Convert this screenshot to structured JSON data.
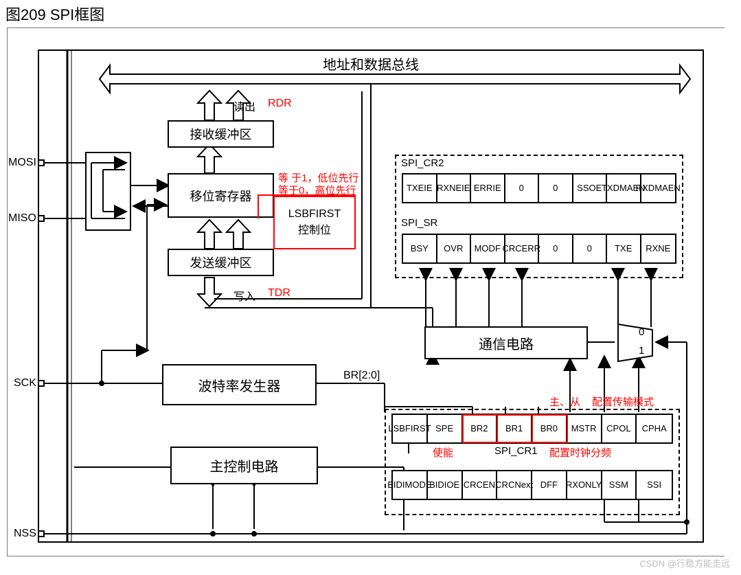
{
  "title": "图209    SPI框图",
  "bus_label": "地址和数据总线",
  "blocks": {
    "rx_buf": "接收缓冲区",
    "shift_reg": "移位寄存器",
    "tx_buf": "发送缓冲区",
    "lsbfirst_box_l1": "LSBFIRST",
    "lsbfirst_box_l2": "控制位",
    "baud": "波特率发生器",
    "master_ctrl": "主控制电路",
    "comm": "通信电路"
  },
  "labels": {
    "read": "读出",
    "write": "写入",
    "br": "BR[2:0]",
    "mux0": "0",
    "mux1": "1"
  },
  "red": {
    "rdr": "RDR",
    "tdr": "TDR",
    "lsb_note1": "等 于1，低位先行",
    "lsb_note2": "等于0，高位先行",
    "enable": "使能",
    "master_slave": "主、从",
    "mode": "配置传输模式",
    "clkdiv": "配置时钟分频",
    "red_color": "#ff0000"
  },
  "pins": {
    "mosi": "MOSI",
    "miso": "MISO",
    "sck": "SCK",
    "nss": "NSS"
  },
  "registers": {
    "cr2": {
      "name": "SPI_CR2",
      "cells": [
        "TXE\nIE",
        "RXNE\nIE",
        "ERR\nIE",
        "0",
        "0",
        "SSOE",
        "TXDM\nAEN",
        "RXDM\nAEN"
      ]
    },
    "sr": {
      "name": "SPI_SR",
      "cells": [
        "BSY",
        "OVR",
        "MOD\nF",
        "CRC\nERR",
        "0",
        "0",
        "TXE",
        "RXNE"
      ]
    },
    "cr1_top": {
      "name": "SPI_CR1",
      "cells": [
        "LSB\nFIRST",
        "SPE",
        "BR2",
        "BR1",
        "BR0",
        "MSTR",
        "CPOL",
        "CPHA"
      ],
      "red_indices": [
        2,
        3,
        4
      ]
    },
    "cr1_bot": {
      "cells": [
        "BIDI\nMODE",
        "BIDI\nOE",
        "CRC\nEN",
        "CRC\nNext",
        "DFF",
        "RX\nONLY",
        "SSM",
        "SSI"
      ]
    }
  },
  "colors": {
    "fg": "#000000",
    "bg": "#ffffff",
    "red": "#ff0000",
    "watermark": "#bdbdbd",
    "border_outer": "#7a7a7a"
  },
  "watermark": "CSDN @行稳方能走远"
}
